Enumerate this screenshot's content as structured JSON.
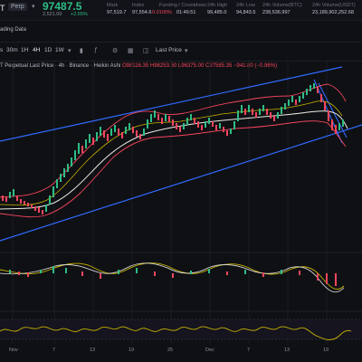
{
  "header": {
    "symbol": "T",
    "market_type": "Perp",
    "last_price": "97487.5",
    "sub_price": "2,521.00",
    "sub_change": "+2.65%",
    "stats": [
      {
        "label": "Mark",
        "value": "97,519.7",
        "red": false
      },
      {
        "label": "Index",
        "value": "97,554.6",
        "red": false
      },
      {
        "label": "Funding / Countdown",
        "value_a": "0.0100%",
        "value_b": "01:46:51"
      },
      {
        "label": "24h High",
        "value": "99,485.0",
        "red": false
      },
      {
        "label": "24h Low",
        "value": "94,843.5",
        "red": false
      },
      {
        "label": "24h Volume(BTC)",
        "value": "238,536.997",
        "red": false
      },
      {
        "label": "24h Volume(USDT)",
        "value": "23,189,902,252.68",
        "red": false
      }
    ]
  },
  "section": {
    "title": "ading Data"
  },
  "toolbar": {
    "intervals": [
      "s",
      "30m",
      "1H",
      "4H",
      "1D",
      "1W"
    ],
    "active_interval": "4H",
    "price_type_label": "Last Price",
    "icons": [
      "chevron-down-icon",
      "candle-style-icon",
      "indicators-icon",
      "settings-icon",
      "layout-icon",
      "chart-type-icon",
      "chevron-down-icon"
    ]
  },
  "legend": {
    "text": "T Perpetual Last Price · 4h · Binance · Heikin Ashi",
    "open": "O98116.35",
    "high": "H98253.50",
    "low": "L96375.00",
    "close": "C97585.35",
    "change": "−941.80 (−0.96%)"
  },
  "x_axis": {
    "labels": [
      "Nov",
      "7",
      "13",
      "19",
      "25",
      "Dec",
      "7",
      "13",
      "19"
    ]
  },
  "colors": {
    "up": "#2ebd85",
    "down": "#f6465d",
    "channel": "#2f6bff",
    "bollinger": "#f6465d",
    "ma": "#f0f0e8",
    "ema": "#c6b200"
  }
}
